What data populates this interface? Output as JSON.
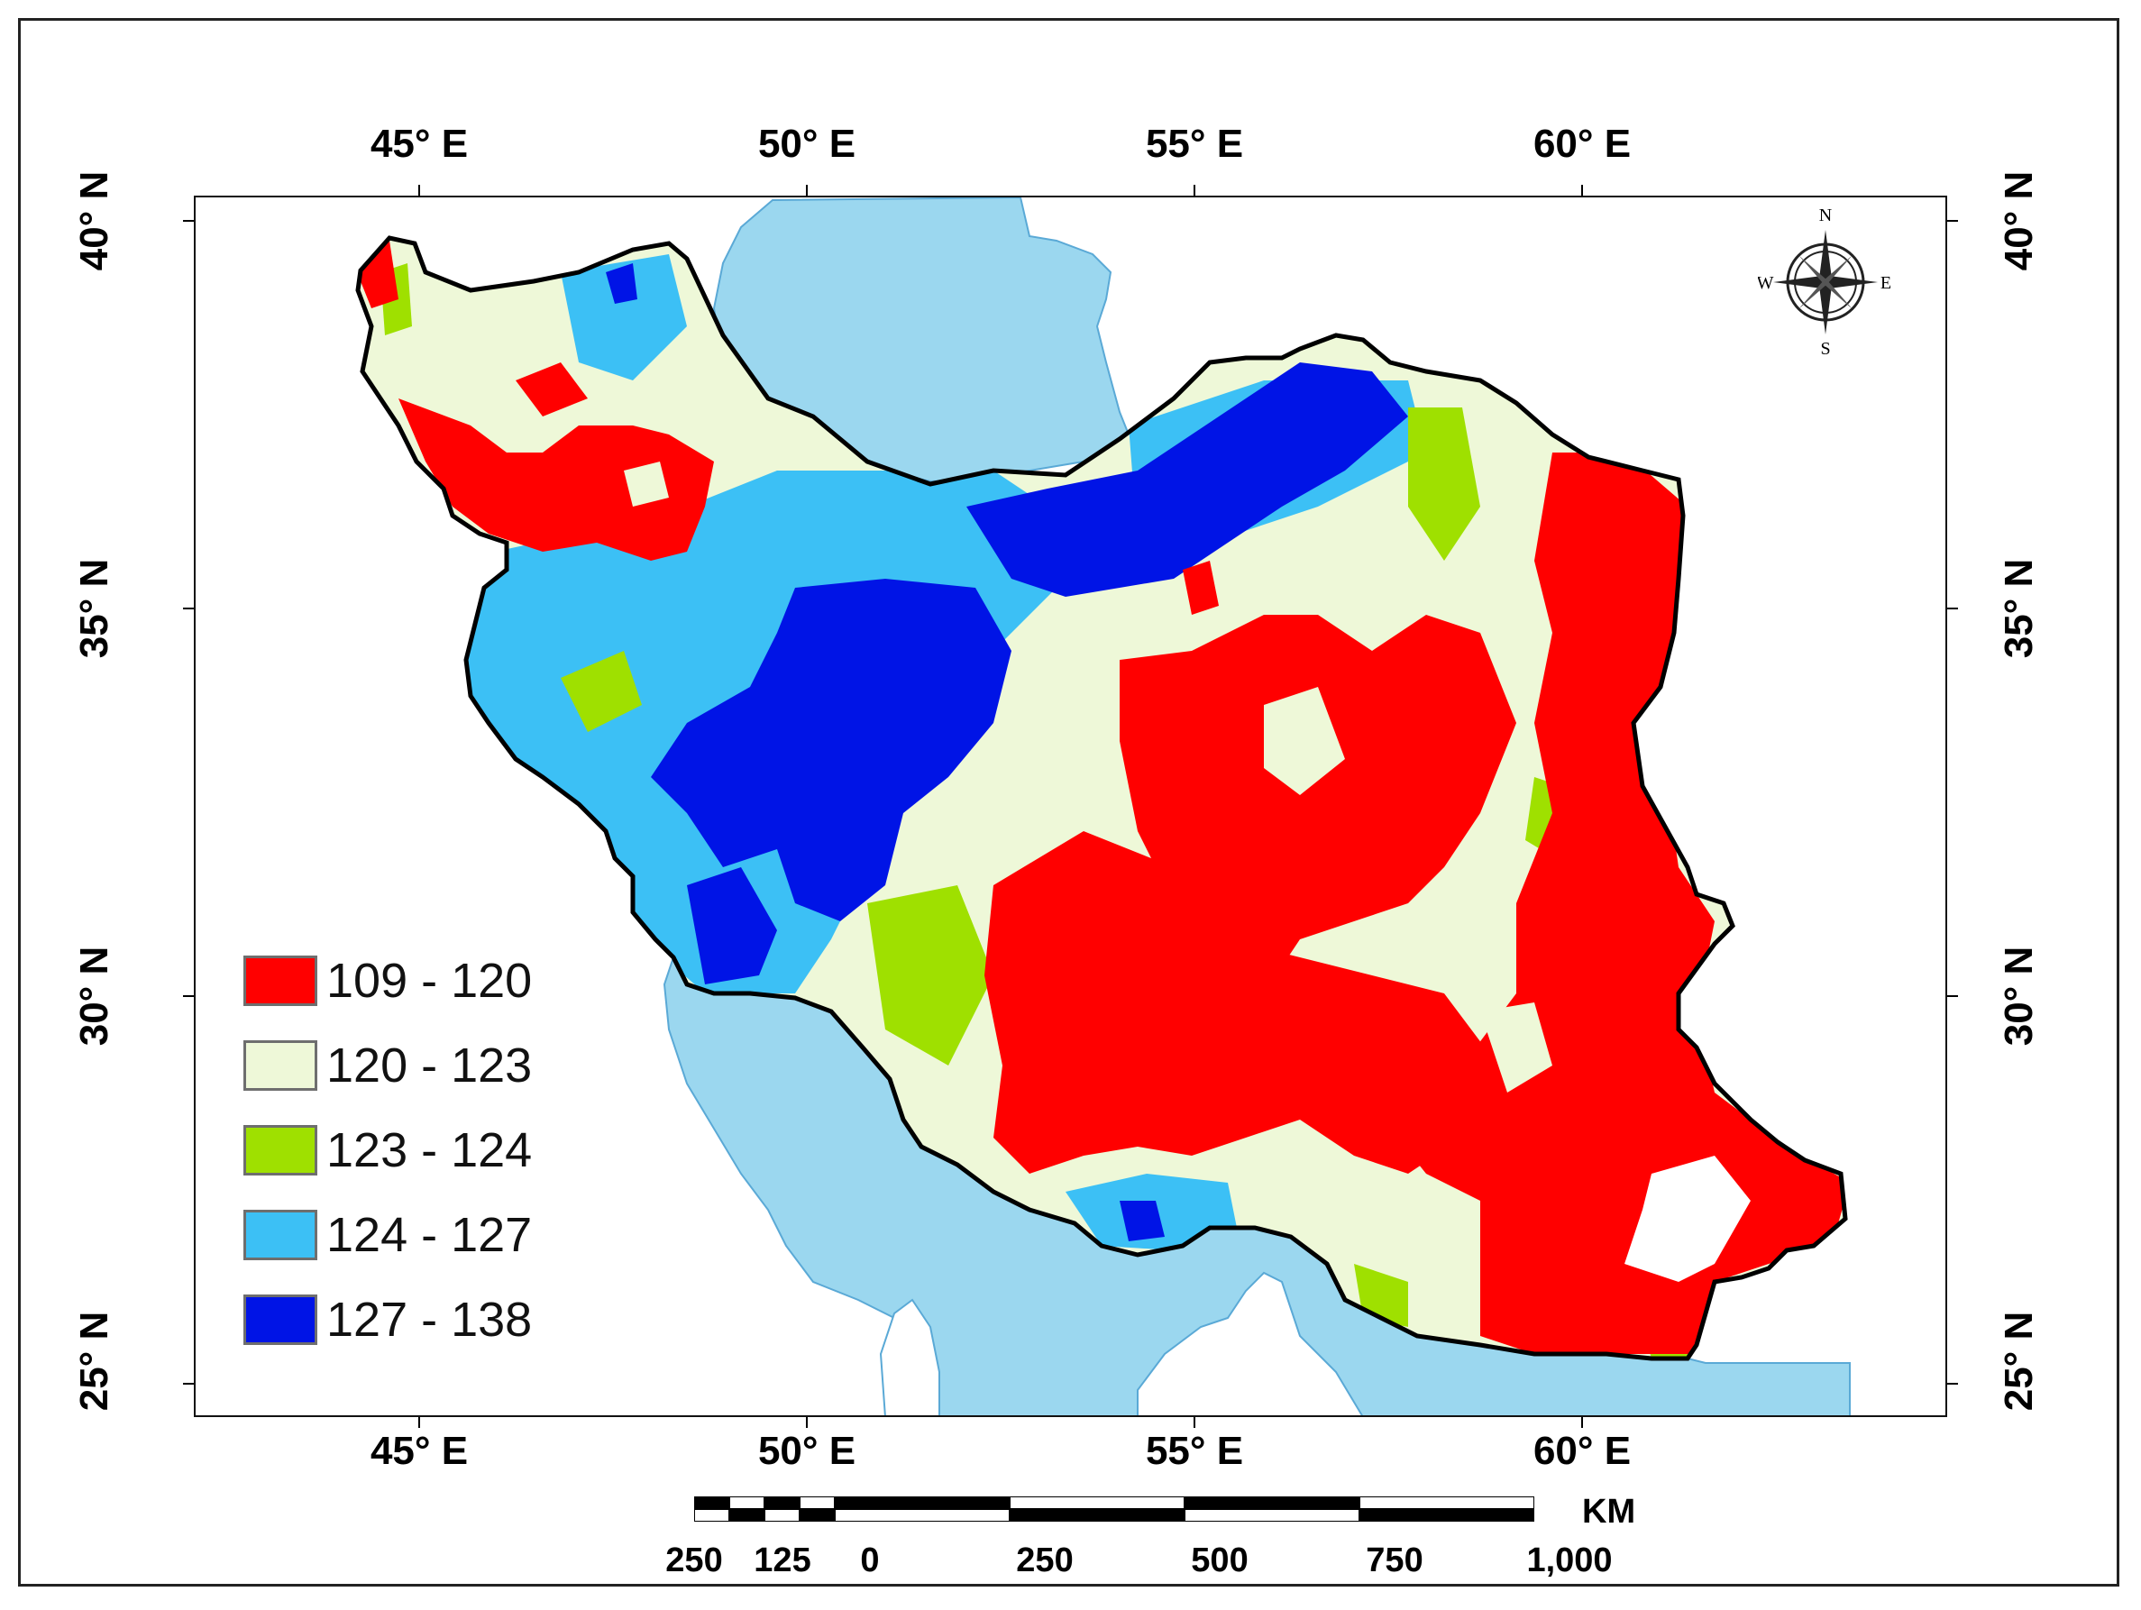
{
  "map": {
    "lon_labels": [
      "45° E",
      "50° E",
      "55° E",
      "60° E"
    ],
    "lat_labels": [
      "40° N",
      "35° N",
      "30° N",
      "25° N"
    ],
    "colors": {
      "sea": "#9bd7ef",
      "land_outside": "#ffffff",
      "border": "#000000"
    }
  },
  "legend": {
    "items": [
      {
        "label": "109 - 120",
        "color": "#ff0000"
      },
      {
        "label": "120 - 123",
        "color": "#eef8d8"
      },
      {
        "label": "123 - 124",
        "color": "#9fe000"
      },
      {
        "label": "124 - 127",
        "color": "#3cc0f5"
      },
      {
        "label": "127 - 138",
        "color": "#0014e6"
      }
    ]
  },
  "compass": {
    "n": "N",
    "s": "S",
    "e": "E",
    "w": "W"
  },
  "scalebar": {
    "unit": "KM",
    "labels": [
      "250",
      "125",
      "0",
      "250",
      "500",
      "750",
      "1,000"
    ]
  }
}
